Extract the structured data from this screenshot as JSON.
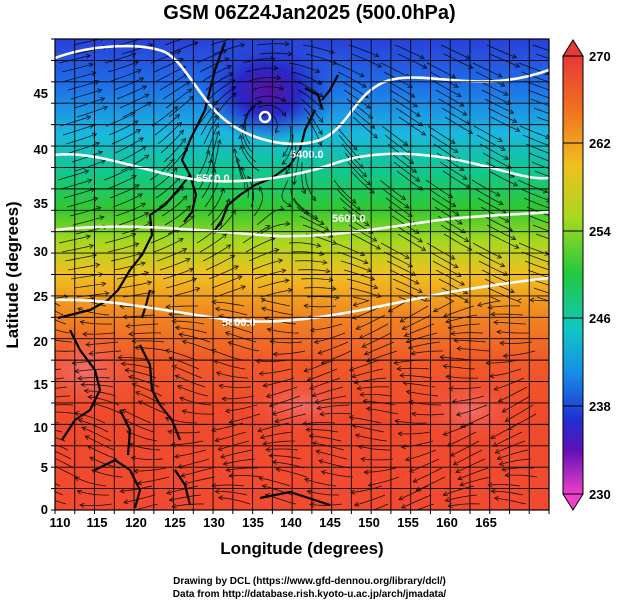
{
  "title": "GSM 06Z24Jan2025 (500.0hPa)",
  "xlabel": "Longitude (degrees)",
  "ylabel": "Latitude  (degrees)",
  "x_ticks": [
    "110",
    "115",
    "120",
    "125",
    "130",
    "135",
    "140",
    "145",
    "150",
    "155",
    "160",
    "165"
  ],
  "y_ticks": [
    "0",
    "5",
    "10",
    "15",
    "20",
    "25",
    "30",
    "35",
    "40",
    "45"
  ],
  "colorbar": {
    "labels": [
      "270",
      "262",
      "254",
      "246",
      "238",
      "230"
    ],
    "min": 230,
    "max": 270
  },
  "contour_labels": [
    "5400.0",
    "5500.0",
    "5600.0",
    "5800.0"
  ],
  "footer": {
    "line1": "Drawing by DCL (https://www.gfd-dennou.org/library/dcl/)",
    "line2": "Data from http://database.rish.kyoto-u.ac.jp/arch/jmadata/"
  },
  "map": {
    "lon_range": [
      110,
      170
    ],
    "lat_range": [
      0,
      50
    ]
  }
}
